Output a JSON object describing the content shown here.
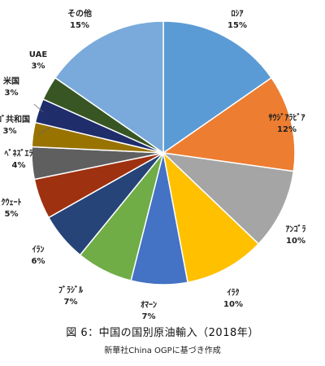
{
  "caption": "図 6：中国の国別原油輸入（2018年）",
  "source": "新華社China OGPに基づき作成",
  "chart_data": {
    "type": "pie",
    "title": "",
    "unit": "%",
    "slices": [
      {
        "name": "ﾛｼｱ",
        "value": 15.5,
        "label": "15%",
        "color": "#5b9bd5"
      },
      {
        "name": "ｻｳｼﾞｱﾗﾋﾞｱ",
        "value": 12,
        "label": "12%",
        "color": "#ed7d31"
      },
      {
        "name": "ｱﾝｺﾞﾗ",
        "value": 10,
        "label": "10%",
        "color": "#a5a5a5"
      },
      {
        "name": "ｲﾗｸ",
        "value": 10,
        "label": "10%",
        "color": "#ffc000"
      },
      {
        "name": "ｵﾏｰﾝ",
        "value": 7,
        "label": "7%",
        "color": "#4472c4"
      },
      {
        "name": "ﾌﾞﾗｼﾞﾙ",
        "value": 7,
        "label": "7%",
        "color": "#70ad47"
      },
      {
        "name": "ｲﾗﾝ",
        "value": 6,
        "label": "6%",
        "color": "#264478"
      },
      {
        "name": "ｸｳｪｰﾄ",
        "value": 5,
        "label": "5%",
        "color": "#9e3110"
      },
      {
        "name": "ﾍﾞﾈｽﾞｴﾗ",
        "value": 4,
        "label": "4%",
        "color": "#5f5f5f"
      },
      {
        "name": "ｺﾝｺﾞ共和国",
        "value": 3,
        "label": "3%",
        "color": "#997300"
      },
      {
        "name": "米国",
        "value": 3,
        "label": "3%",
        "color": "#1f2d6b"
      },
      {
        "name": "UAE",
        "value": 3,
        "label": "3%",
        "color": "#375623"
      },
      {
        "name": "その他",
        "value": 15.5,
        "label": "15%",
        "color": "#7aaadb"
      }
    ]
  }
}
